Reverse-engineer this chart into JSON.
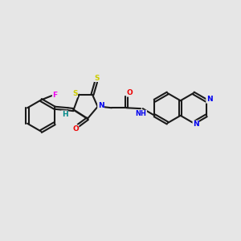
{
  "background_color": "#e6e6e6",
  "bond_color": "#1a1a1a",
  "atom_colors": {
    "S": "#cccc00",
    "N": "#0000ee",
    "O": "#ee0000",
    "F": "#ee00ee",
    "H": "#008888",
    "C": "#1a1a1a"
  },
  "figsize": [
    3.0,
    3.0
  ],
  "dpi": 100,
  "xlim": [
    0,
    10
  ],
  "ylim": [
    2,
    8
  ]
}
